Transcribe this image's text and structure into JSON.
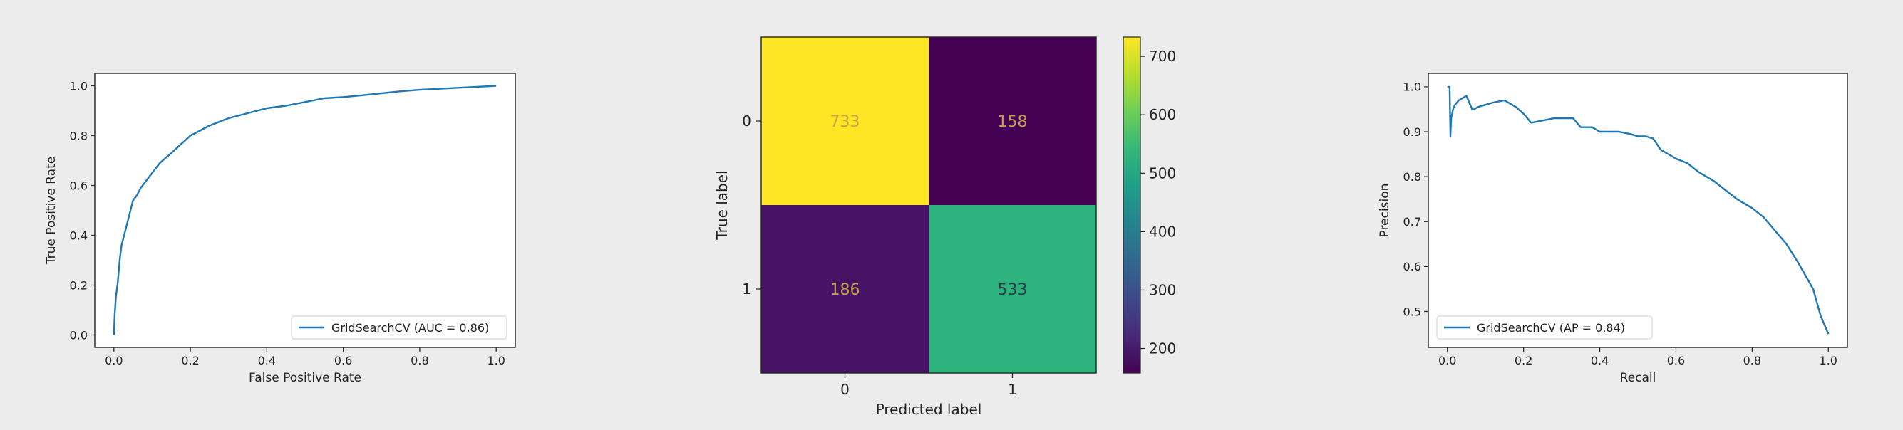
{
  "chart_data": [
    {
      "type": "line",
      "xlabel": "False Positive Rate",
      "ylabel": "True Positive Rate",
      "xlim": [
        -0.05,
        1.05
      ],
      "ylim": [
        -0.05,
        1.05
      ],
      "xticks": [
        "0.0",
        "0.2",
        "0.4",
        "0.6",
        "0.8",
        "1.0"
      ],
      "yticks": [
        "0.0",
        "0.2",
        "0.4",
        "0.6",
        "0.8",
        "1.0"
      ],
      "legend_position": "lower-right",
      "grid": false,
      "series": [
        {
          "name": "GridSearchCV (AUC = 0.86)",
          "color": "#1f77b4",
          "x": [
            0.0,
            0.002,
            0.005,
            0.01,
            0.015,
            0.02,
            0.03,
            0.04,
            0.05,
            0.06,
            0.07,
            0.08,
            0.1,
            0.12,
            0.15,
            0.2,
            0.25,
            0.3,
            0.35,
            0.4,
            0.45,
            0.5,
            0.55,
            0.6,
            0.65,
            0.7,
            0.75,
            0.8,
            0.85,
            0.9,
            0.95,
            1.0
          ],
          "y": [
            0.0,
            0.08,
            0.15,
            0.21,
            0.3,
            0.36,
            0.42,
            0.48,
            0.54,
            0.56,
            0.59,
            0.61,
            0.65,
            0.69,
            0.73,
            0.8,
            0.84,
            0.87,
            0.89,
            0.91,
            0.92,
            0.935,
            0.95,
            0.955,
            0.962,
            0.97,
            0.978,
            0.984,
            0.988,
            0.992,
            0.996,
            1.0
          ]
        }
      ]
    },
    {
      "type": "heatmap",
      "xlabel": "Predicted label",
      "ylabel": "True label",
      "categories_x": [
        "0",
        "1"
      ],
      "categories_y": [
        "0",
        "1"
      ],
      "values": [
        [
          733,
          158
        ],
        [
          186,
          533
        ]
      ],
      "colormap": "viridis",
      "colorbar_ticks": [
        "200",
        "300",
        "400",
        "500",
        "600",
        "700"
      ],
      "colorbar_range": [
        158,
        733
      ],
      "cell_colors": [
        [
          "#fde725",
          "#440154"
        ],
        [
          "#471365",
          "#2db27d"
        ]
      ],
      "text_colors": [
        [
          "#c6a04c",
          "#c6a04c"
        ],
        [
          "#c6a04c",
          "#2d3a4a"
        ]
      ]
    },
    {
      "type": "line",
      "xlabel": "Recall",
      "ylabel": "Precision",
      "xlim": [
        -0.05,
        1.05
      ],
      "ylim": [
        0.42,
        1.03
      ],
      "xticks": [
        "0.0",
        "0.2",
        "0.4",
        "0.6",
        "0.8",
        "1.0"
      ],
      "yticks": [
        "0.5",
        "0.6",
        "0.7",
        "0.8",
        "0.9",
        "1.0"
      ],
      "legend_position": "lower-left",
      "grid": false,
      "series": [
        {
          "name": "GridSearchCV (AP = 0.84)",
          "color": "#1f77b4",
          "x": [
            0.0,
            0.003,
            0.006,
            0.008,
            0.01,
            0.015,
            0.02,
            0.03,
            0.04,
            0.05,
            0.06,
            0.065,
            0.07,
            0.08,
            0.1,
            0.12,
            0.15,
            0.18,
            0.2,
            0.22,
            0.25,
            0.28,
            0.3,
            0.33,
            0.35,
            0.38,
            0.4,
            0.43,
            0.45,
            0.48,
            0.5,
            0.52,
            0.54,
            0.56,
            0.58,
            0.6,
            0.63,
            0.66,
            0.7,
            0.73,
            0.76,
            0.8,
            0.83,
            0.86,
            0.89,
            0.92,
            0.94,
            0.96,
            0.97,
            0.98,
            0.99,
            1.0
          ],
          "y": [
            1.0,
            1.0,
            1.0,
            0.89,
            0.93,
            0.95,
            0.96,
            0.97,
            0.975,
            0.98,
            0.96,
            0.95,
            0.95,
            0.955,
            0.96,
            0.965,
            0.97,
            0.955,
            0.94,
            0.92,
            0.925,
            0.93,
            0.93,
            0.93,
            0.91,
            0.91,
            0.9,
            0.9,
            0.9,
            0.895,
            0.89,
            0.89,
            0.885,
            0.86,
            0.85,
            0.84,
            0.83,
            0.81,
            0.79,
            0.77,
            0.75,
            0.73,
            0.71,
            0.68,
            0.65,
            0.61,
            0.58,
            0.55,
            0.52,
            0.49,
            0.47,
            0.45
          ]
        }
      ]
    }
  ]
}
